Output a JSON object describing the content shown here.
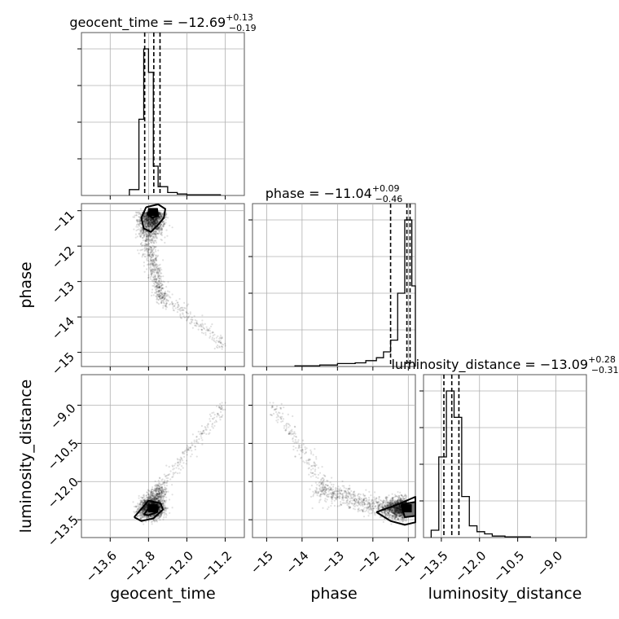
{
  "chart_data": {
    "type": "corner",
    "parameters": [
      "geocent_time",
      "phase",
      "luminosity_distance"
    ],
    "grid": true,
    "marginals": [
      {
        "name": "geocent_time",
        "title": "geocent_time = −12.69",
        "title_plus": "+0.13",
        "title_minus": "−0.19",
        "range": [
          -14.2,
          -10.8
        ],
        "quantiles": [
          -12.88,
          -12.69,
          -12.56
        ],
        "bin_edges": [
          -13.2,
          -13.0,
          -12.9,
          -12.8,
          -12.7,
          -12.6,
          -12.4,
          -12.2,
          -12.0,
          -11.6,
          -11.3
        ],
        "counts": [
          0.04,
          0.52,
          1.0,
          0.84,
          0.2,
          0.06,
          0.02,
          0.01,
          0.005,
          0.005
        ]
      },
      {
        "name": "phase",
        "title": "phase = −11.04",
        "title_plus": "+0.09",
        "title_minus": "−0.46",
        "range": [
          -15.4,
          -10.8
        ],
        "quantiles": [
          -11.5,
          -11.04,
          -10.95
        ],
        "bin_edges": [
          -14.2,
          -13.5,
          -13.0,
          -12.5,
          -12.2,
          -11.9,
          -11.7,
          -11.5,
          -11.3,
          -11.1,
          -10.9,
          -10.8
        ],
        "counts": [
          0.005,
          0.01,
          0.02,
          0.025,
          0.04,
          0.06,
          0.1,
          0.18,
          0.5,
          1.0,
          0.55
        ]
      },
      {
        "name": "luminosity_distance",
        "title": "luminosity_distance = −13.09",
        "title_plus": "+0.28",
        "title_minus": "−0.31",
        "range": [
          -14.2,
          -7.8
        ],
        "quantiles": [
          -13.4,
          -13.09,
          -12.81
        ],
        "bin_edges": [
          -13.9,
          -13.6,
          -13.3,
          -13.0,
          -12.7,
          -12.4,
          -12.1,
          -11.8,
          -11.5,
          -11.0,
          -10.0
        ],
        "counts": [
          0.05,
          0.55,
          1.0,
          0.82,
          0.28,
          0.08,
          0.04,
          0.025,
          0.01,
          0.005
        ]
      }
    ],
    "axes": {
      "geocent_time": {
        "range": [
          -14.2,
          -10.8
        ],
        "ticks": [
          -13.6,
          -12.8,
          -12.0,
          -11.2
        ],
        "tick_labels": [
          "−13.6",
          "−12.8",
          "−12.0",
          "−11.2"
        ]
      },
      "phase": {
        "range": [
          -15.4,
          -10.8
        ],
        "ticks": [
          -15,
          -14,
          -13,
          -12,
          -11
        ],
        "tick_labels": [
          "−15",
          "−14",
          "−13",
          "−12",
          "−11"
        ]
      },
      "luminosity_distance": {
        "range": [
          -14.2,
          -7.8
        ],
        "ticks": [
          -13.5,
          -12.0,
          -10.5,
          -9.0
        ],
        "tick_labels": [
          "−13.5",
          "−12.0",
          "−10.5",
          "−9.0"
        ]
      }
    },
    "axis_labels": {
      "x": [
        "geocent_time",
        "phase",
        "luminosity_distance"
      ],
      "y": [
        "phase",
        "luminosity_distance"
      ]
    },
    "scatter": {
      "peak": {
        "geocent_time": -12.71,
        "phase": -11.04,
        "luminosity_distance": -13.05
      },
      "contours_geocent_phase": [
        [
          [
            -12.85,
            -10.9
          ],
          [
            -12.6,
            -10.82
          ],
          [
            -12.45,
            -10.95
          ],
          [
            -12.48,
            -11.2
          ],
          [
            -12.6,
            -11.4
          ],
          [
            -12.75,
            -11.6
          ],
          [
            -12.9,
            -11.5
          ],
          [
            -12.95,
            -11.2
          ],
          [
            -12.85,
            -10.9
          ]
        ],
        [
          [
            -12.78,
            -10.95
          ],
          [
            -12.62,
            -10.95
          ],
          [
            -12.6,
            -11.15
          ],
          [
            -12.72,
            -11.2
          ],
          [
            -12.82,
            -11.1
          ],
          [
            -12.78,
            -10.95
          ]
        ]
      ],
      "contours_geocent_dist": [
        [
          [
            -13.1,
            -13.4
          ],
          [
            -12.8,
            -12.75
          ],
          [
            -12.55,
            -12.85
          ],
          [
            -12.5,
            -13.1
          ],
          [
            -12.7,
            -13.45
          ],
          [
            -12.95,
            -13.55
          ],
          [
            -13.1,
            -13.4
          ]
        ],
        [
          [
            -12.9,
            -13.3
          ],
          [
            -12.75,
            -12.95
          ],
          [
            -12.6,
            -13.0
          ],
          [
            -12.62,
            -13.2
          ],
          [
            -12.8,
            -13.32
          ],
          [
            -12.9,
            -13.3
          ]
        ]
      ],
      "contours_phase_dist": [
        [
          [
            -11.9,
            -13.2
          ],
          [
            -11.3,
            -12.9
          ],
          [
            -10.8,
            -12.6
          ],
          [
            -10.8,
            -13.6
          ],
          [
            -11.1,
            -13.7
          ],
          [
            -11.5,
            -13.55
          ],
          [
            -11.9,
            -13.2
          ]
        ],
        [
          [
            -11.2,
            -12.9
          ],
          [
            -10.8,
            -12.8
          ],
          [
            -10.8,
            -13.35
          ],
          [
            -11.1,
            -13.4
          ],
          [
            -11.2,
            -12.9
          ]
        ]
      ]
    }
  }
}
